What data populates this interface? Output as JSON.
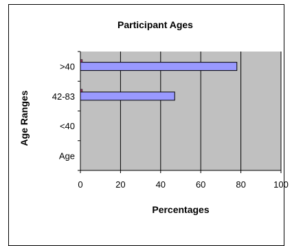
{
  "chart_data": {
    "type": "bar",
    "orientation": "horizontal",
    "title": "Participant Ages",
    "xlabel": "Percentages",
    "ylabel": "Age Ranges",
    "categories": [
      ">40",
      "42-83",
      "<40",
      "Age"
    ],
    "series": [
      {
        "color": "#9999ff",
        "values": [
          78,
          47,
          0,
          0
        ]
      },
      {
        "color": "#993366",
        "values": [
          1,
          1,
          0,
          0
        ]
      }
    ],
    "xlim": [
      0,
      100
    ],
    "xticks": [
      "0",
      "20",
      "40",
      "60",
      "80",
      "100"
    ],
    "grid": true,
    "plot_background": "#c0c0c0"
  }
}
